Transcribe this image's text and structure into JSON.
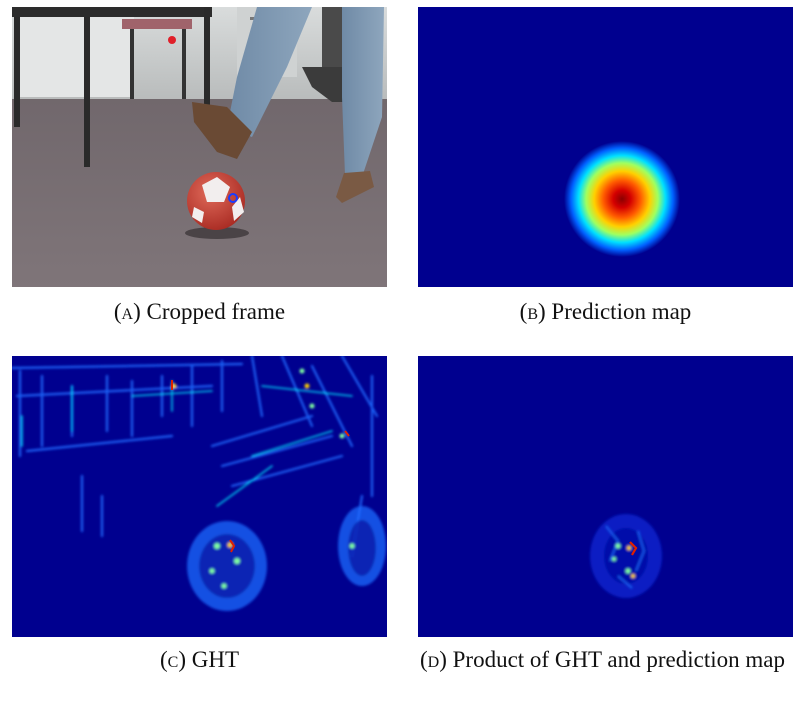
{
  "figure": {
    "panels": [
      {
        "label": "(a)",
        "caption": "Cropped frame",
        "image": "soccer-ball-kick-photo"
      },
      {
        "label": "(b)",
        "caption": "Prediction map",
        "image": "gaussian-heatmap"
      },
      {
        "label": "(c)",
        "caption": "GHT",
        "image": "ght-response-heatmap"
      },
      {
        "label": "(d)",
        "caption": "Product of GHT and prediction map",
        "image": "product-heatmap"
      }
    ],
    "colors": {
      "heatmap_background": "#00008f",
      "heatmap_peak": "#8b0000",
      "marker_red": "#e0202a",
      "marker_blue": "#1a3cff"
    }
  }
}
